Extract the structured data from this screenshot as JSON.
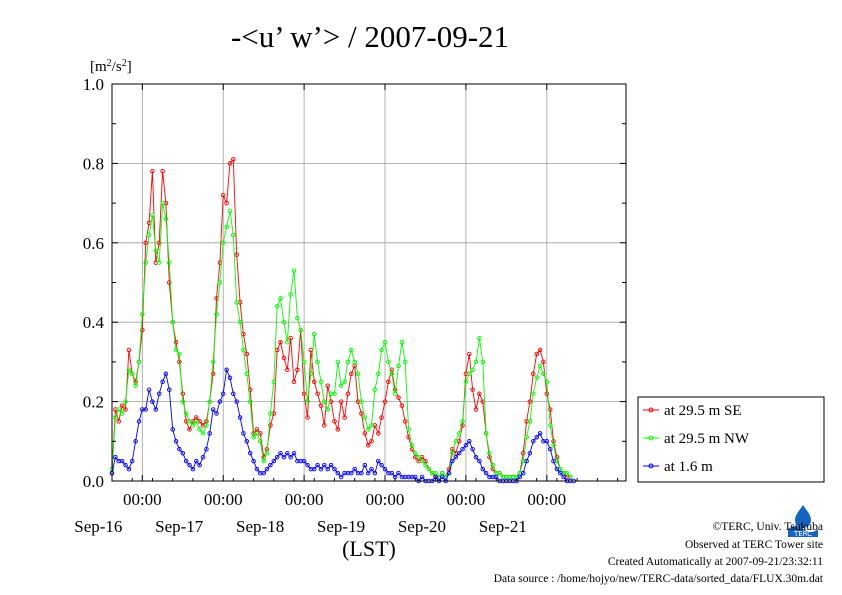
{
  "chart_data": {
    "type": "line",
    "title": "-<u’ w’> / 2007-09-21",
    "ylabel": "[m2/s2]",
    "xlabel": "(LST)",
    "ylim": [
      0,
      1.0
    ],
    "xlim": [
      "2007-09-15 15:00",
      "2007-09-21 23:30"
    ],
    "yticks": [
      "0.0",
      "0.2",
      "0.4",
      "0.6",
      "0.8",
      "1.0"
    ],
    "xticks": [
      {
        "time": "00:00",
        "date": "Sep-16"
      },
      {
        "time": "00:00",
        "date": "Sep-17"
      },
      {
        "time": "00:00",
        "date": "Sep-18"
      },
      {
        "time": "00:00",
        "date": "Sep-19"
      },
      {
        "time": "00:00",
        "date": "Sep-20"
      },
      {
        "time": "00:00",
        "date": "Sep-21"
      }
    ],
    "grid": true,
    "legend_position": "right",
    "sample_interval_hours": 1,
    "series": [
      {
        "name": "at 29.5 m SE",
        "color": "#ff0000",
        "values": [
          0.02,
          0.18,
          0.15,
          0.19,
          0.18,
          0.33,
          0.27,
          0.25,
          0.3,
          0.38,
          0.6,
          0.65,
          0.78,
          0.55,
          0.6,
          0.78,
          0.7,
          0.5,
          0.4,
          0.35,
          0.3,
          0.22,
          0.15,
          0.13,
          0.15,
          0.16,
          0.15,
          0.14,
          0.15,
          0.2,
          0.27,
          0.46,
          0.55,
          0.72,
          0.7,
          0.8,
          0.81,
          0.57,
          0.45,
          0.37,
          0.32,
          0.23,
          0.12,
          0.13,
          0.12,
          0.06,
          0.08,
          0.14,
          0.17,
          0.33,
          0.35,
          0.31,
          0.28,
          0.36,
          0.25,
          0.28,
          0.38,
          0.22,
          0.16,
          0.33,
          0.25,
          0.22,
          0.19,
          0.14,
          0.24,
          0.2,
          0.15,
          0.13,
          0.2,
          0.16,
          0.22,
          0.27,
          0.29,
          0.2,
          0.17,
          0.12,
          0.09,
          0.1,
          0.14,
          0.12,
          0.16,
          0.2,
          0.25,
          0.28,
          0.23,
          0.21,
          0.19,
          0.15,
          0.11,
          0.08,
          0.06,
          0.05,
          0.06,
          0.05,
          0.03,
          0.02,
          0.01,
          0.01,
          0.02,
          0.01,
          0.03,
          0.08,
          0.07,
          0.1,
          0.14,
          0.27,
          0.32,
          0.23,
          0.18,
          0.22,
          0.2,
          0.12,
          0.06,
          0.03,
          0.02,
          0.02,
          0.01,
          0.01,
          0.01,
          0.01,
          0.01,
          0.02,
          0.07,
          0.15,
          0.2,
          0.27,
          0.32,
          0.33,
          0.3,
          0.22,
          0.18,
          0.1,
          0.06,
          0.03,
          0.02,
          0.01,
          0.01
        ]
      },
      {
        "name": "at 29.5 m NW",
        "color": "#00ff00",
        "values": [
          0.03,
          0.16,
          0.18,
          0.17,
          0.2,
          0.28,
          0.27,
          0.24,
          0.3,
          0.42,
          0.55,
          0.62,
          0.67,
          0.58,
          0.55,
          0.7,
          0.66,
          0.55,
          0.4,
          0.33,
          0.32,
          0.2,
          0.17,
          0.15,
          0.14,
          0.15,
          0.13,
          0.12,
          0.14,
          0.2,
          0.3,
          0.42,
          0.5,
          0.6,
          0.64,
          0.68,
          0.62,
          0.45,
          0.4,
          0.33,
          0.27,
          0.2,
          0.11,
          0.12,
          0.1,
          0.05,
          0.07,
          0.17,
          0.25,
          0.44,
          0.46,
          0.4,
          0.35,
          0.47,
          0.53,
          0.41,
          0.38,
          0.3,
          0.2,
          0.27,
          0.37,
          0.3,
          0.25,
          0.2,
          0.18,
          0.22,
          0.22,
          0.3,
          0.24,
          0.25,
          0.3,
          0.33,
          0.3,
          0.27,
          0.2,
          0.16,
          0.13,
          0.14,
          0.23,
          0.27,
          0.33,
          0.35,
          0.3,
          0.27,
          0.22,
          0.29,
          0.35,
          0.3,
          0.13,
          0.09,
          0.07,
          0.06,
          0.05,
          0.04,
          0.03,
          0.02,
          0.02,
          0.01,
          0.02,
          0.01,
          0.02,
          0.07,
          0.1,
          0.12,
          0.15,
          0.25,
          0.27,
          0.28,
          0.3,
          0.36,
          0.3,
          0.12,
          0.07,
          0.04,
          0.02,
          0.02,
          0.01,
          0.01,
          0.01,
          0.01,
          0.01,
          0.02,
          0.05,
          0.11,
          0.15,
          0.22,
          0.26,
          0.29,
          0.27,
          0.25,
          0.14,
          0.09,
          0.05,
          0.03,
          0.02,
          0.02,
          0.01
        ]
      },
      {
        "name": "at 1.6 m",
        "color": "#0000ff",
        "values": [
          0.02,
          0.06,
          0.05,
          0.05,
          0.04,
          0.03,
          0.05,
          0.1,
          0.15,
          0.18,
          0.18,
          0.23,
          0.2,
          0.18,
          0.22,
          0.25,
          0.27,
          0.23,
          0.13,
          0.1,
          0.08,
          0.07,
          0.05,
          0.04,
          0.03,
          0.05,
          0.04,
          0.06,
          0.08,
          0.12,
          0.18,
          0.17,
          0.2,
          0.22,
          0.28,
          0.26,
          0.22,
          0.2,
          0.16,
          0.12,
          0.1,
          0.07,
          0.05,
          0.03,
          0.02,
          0.02,
          0.03,
          0.04,
          0.05,
          0.06,
          0.07,
          0.06,
          0.07,
          0.06,
          0.07,
          0.05,
          0.05,
          0.05,
          0.04,
          0.03,
          0.03,
          0.04,
          0.03,
          0.04,
          0.03,
          0.04,
          0.03,
          0.02,
          0.01,
          0.02,
          0.02,
          0.02,
          0.03,
          0.02,
          0.02,
          0.04,
          0.02,
          0.03,
          0.02,
          0.05,
          0.04,
          0.03,
          0.02,
          0.02,
          0.01,
          0.02,
          0.01,
          0.01,
          0.01,
          0.01,
          0.01,
          0.0,
          0.01,
          0.0,
          0.0,
          0.0,
          0.01,
          0.0,
          0.01,
          0.0,
          0.02,
          0.05,
          0.06,
          0.07,
          0.08,
          0.09,
          0.1,
          0.08,
          0.06,
          0.05,
          0.03,
          0.02,
          0.01,
          0.01,
          0.01,
          0.0,
          0.0,
          0.0,
          0.0,
          0.0,
          0.0,
          0.01,
          0.02,
          0.05,
          0.07,
          0.1,
          0.11,
          0.12,
          0.1,
          0.1,
          0.08,
          0.05,
          0.03,
          0.02,
          0.01,
          0.0,
          0.0,
          0.0
        ]
      }
    ]
  },
  "footer": {
    "copyright": "©TERC, Univ. Tsukuba",
    "observed": "Observed at TERC Tower site",
    "created": "Created Automatically at 2007-09-21/23:32:11",
    "source": "Data source : /home/hojyo/new/TERC-data/sorted_data/FLUX.30m.dat"
  },
  "logo": {
    "text": "TERC",
    "color": "#1565c0"
  }
}
